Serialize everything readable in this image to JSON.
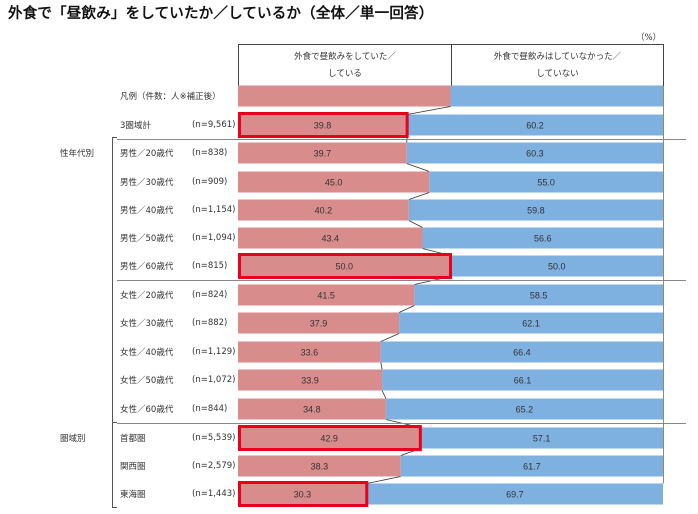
{
  "title": "外食で「昼飲み」をしていたか／しているか（全体／単一回答）",
  "unit": "（%）",
  "headers": [
    "外食で昼飲みをしていた／\nしている",
    "外食で昼飲みはしていなかった／\nしていない"
  ],
  "legend_row_label": "凡例（件数：人※補正後）",
  "groups": [
    {
      "label": "性年代別",
      "first_row": 1,
      "last_row": 10
    },
    {
      "label": "圏域別",
      "first_row": 11,
      "last_row": 13
    }
  ],
  "colors": {
    "yes": "#d98c8c",
    "no": "#7eb0e0",
    "highlight": "#e8001c",
    "connector": "#333333",
    "separator": "#888888"
  },
  "chart_data": {
    "type": "bar",
    "stacked": true,
    "orientation": "horizontal",
    "title": "外食で「昼飲み」をしていたか／しているか（全体／単一回答）",
    "xlabel": "",
    "ylabel": "",
    "xlim": [
      0,
      100
    ],
    "unit": "%",
    "categories": [
      "3圏域計",
      "男性／20歳代",
      "男性／30歳代",
      "男性／40歳代",
      "男性／50歳代",
      "男性／60歳代",
      "女性／20歳代",
      "女性／30歳代",
      "女性／40歳代",
      "女性／50歳代",
      "女性／60歳代",
      "首都圏",
      "関西圏",
      "東海圏"
    ],
    "sample_sizes": [
      "(n=9,561)",
      "(n=838)",
      "(n=909)",
      "(n=1,154)",
      "(n=1,094)",
      "(n=815)",
      "(n=824)",
      "(n=882)",
      "(n=1,129)",
      "(n=1,072)",
      "(n=844)",
      "(n=5,539)",
      "(n=2,579)",
      "(n=1,443)"
    ],
    "series": [
      {
        "name": "外食で昼飲みをしていた／している",
        "values": [
          39.8,
          39.7,
          45.0,
          40.2,
          43.4,
          50.0,
          41.5,
          37.9,
          33.6,
          33.9,
          34.8,
          42.9,
          38.3,
          30.3
        ]
      },
      {
        "name": "外食で昼飲みはしていなかった／していない",
        "values": [
          60.2,
          60.3,
          55.0,
          59.8,
          56.6,
          50.0,
          58.5,
          62.1,
          66.4,
          66.1,
          65.2,
          57.1,
          61.7,
          69.7
        ]
      }
    ],
    "legend_row": {
      "split_percent": 50
    },
    "highlighted": [
      "3圏域計",
      "男性／60歳代",
      "首都圏",
      "東海圏"
    ],
    "connector_lines": true,
    "grid": false
  }
}
